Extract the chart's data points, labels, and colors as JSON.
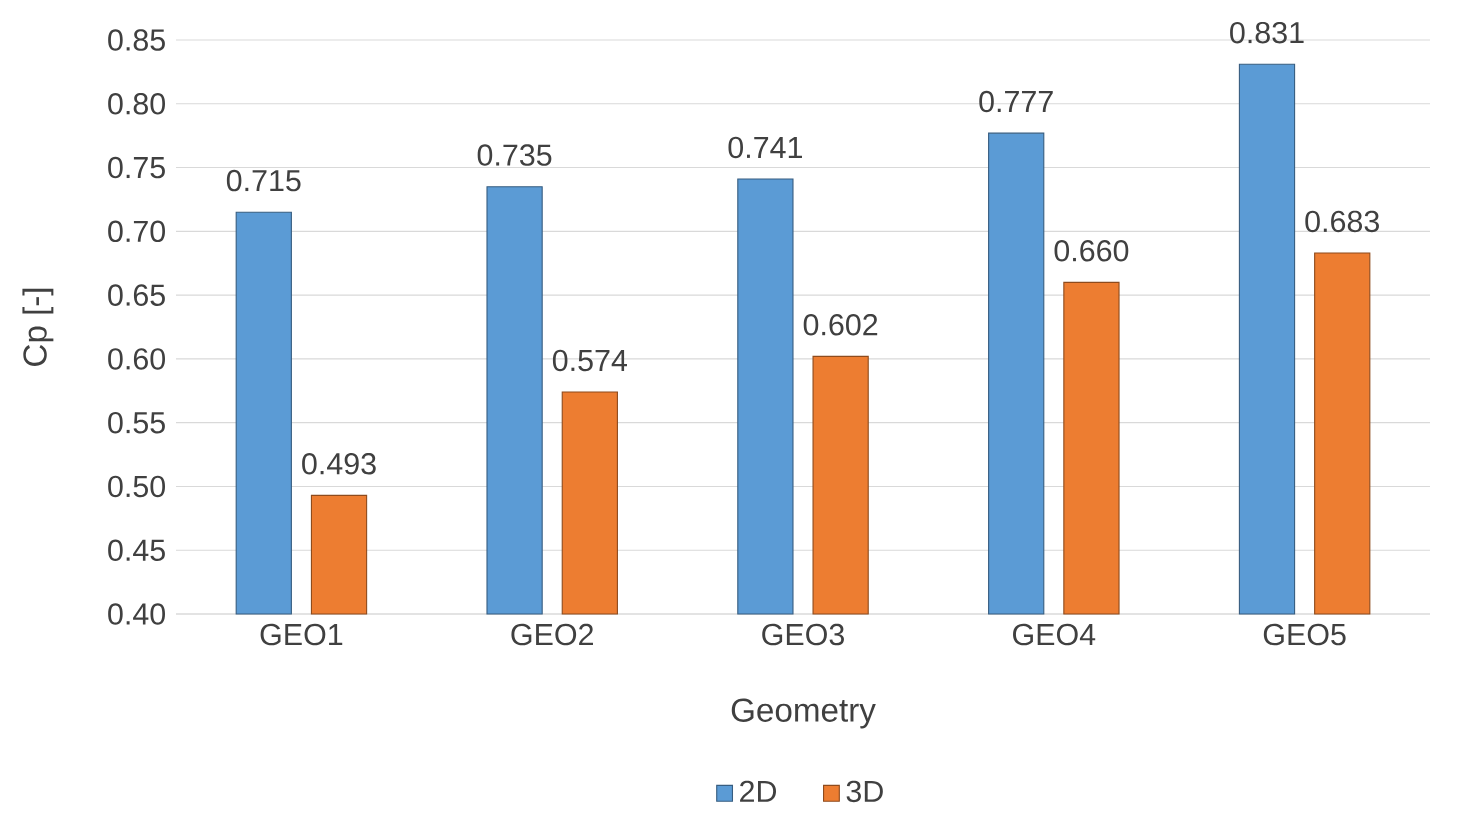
{
  "chart_data": {
    "type": "bar",
    "xlabel": "Geometry",
    "ylabel": "Cp [-]",
    "categories": [
      "GEO1",
      "GEO2",
      "GEO3",
      "GEO4",
      "GEO5"
    ],
    "series": [
      {
        "name": "2D",
        "color": "#5b9bd5",
        "values": [
          0.715,
          0.735,
          0.741,
          0.777,
          0.831
        ],
        "value_labels": [
          "0.715",
          "0.735",
          "0.741",
          "0.777",
          "0.831"
        ]
      },
      {
        "name": "3D",
        "color": "#ed7d31",
        "values": [
          0.493,
          0.574,
          0.602,
          0.66,
          0.683
        ],
        "value_labels": [
          "0.493",
          "0.574",
          "0.602",
          "0.660",
          "0.683"
        ]
      }
    ],
    "ylim": [
      0.4,
      0.85
    ],
    "yticks": [
      {
        "value": 0.4,
        "label": "0.40"
      },
      {
        "value": 0.45,
        "label": "0.45"
      },
      {
        "value": 0.5,
        "label": "0.50"
      },
      {
        "value": 0.55,
        "label": "0.55"
      },
      {
        "value": 0.6,
        "label": "0.60"
      },
      {
        "value": 0.65,
        "label": "0.65"
      },
      {
        "value": 0.7,
        "label": "0.70"
      },
      {
        "value": 0.75,
        "label": "0.75"
      },
      {
        "value": 0.8,
        "label": "0.80"
      },
      {
        "value": 0.85,
        "label": "0.85"
      }
    ],
    "grid": "y",
    "legend": "bottom"
  }
}
